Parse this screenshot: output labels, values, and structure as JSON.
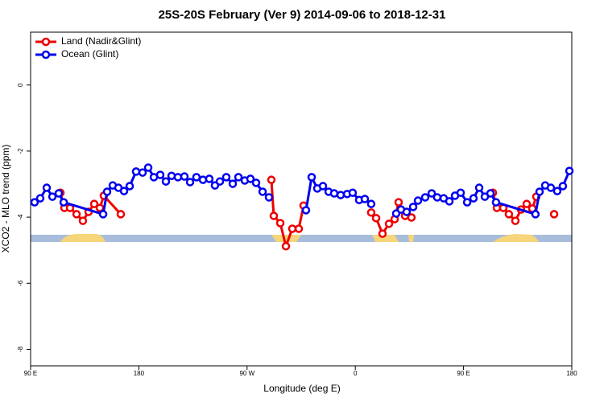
{
  "chart_data": {
    "type": "line",
    "title": "25S-20S February (Ver 9)   2014-09-06 to 2018-12-31",
    "x_label": "Longitude (deg E)",
    "y_label": "XCO2 - MLO trend (ppm)",
    "xlim": [
      90,
      540
    ],
    "ylim": [
      -8.5,
      1.6
    ],
    "xticks": [
      {
        "value": 90,
        "label": "90 E"
      },
      180,
      {
        "value": 270,
        "label": "90 W"
      },
      {
        "value": 360,
        "label": "0"
      },
      {
        "value": 450,
        "label": "90 E"
      },
      {
        "value": 540,
        "label": "180"
      }
    ],
    "yticks": [
      0,
      -2,
      -4,
      -6,
      -8
    ],
    "legend": "top-left",
    "series": [
      {
        "name": "Land (Nadir&Glint)",
        "color": "#ee0000",
        "x": [
          114.8,
          118.1,
          122.8,
          128.2,
          133.5,
          138.2,
          142.9,
          147.6,
          150.9,
          165,
          null,
          290.2,
          292.2,
          297.6,
          302.3,
          307.6,
          313,
          317,
          null,
          373.2,
          377.3,
          382.6,
          388,
          392.7,
          396,
          401.4,
          406.7,
          null,
          474.4,
          477.7,
          483.1,
          487.7,
          493.1,
          497.8,
          502.5,
          507.2,
          510.5,
          null,
          525.3
        ],
        "values": [
          -3.26,
          -3.72,
          -3.72,
          -3.91,
          -4.11,
          -3.84,
          -3.6,
          -3.72,
          -3.35,
          -3.91,
          null,
          -2.87,
          -3.96,
          -4.18,
          -4.88,
          -4.35,
          -4.35,
          -3.65,
          null,
          -3.86,
          -4.03,
          -4.5,
          -4.2,
          -4.06,
          -3.55,
          -3.96,
          -4.01,
          null,
          -3.26,
          -3.72,
          -3.72,
          -3.91,
          -4.11,
          -3.77,
          -3.6,
          -3.74,
          -3.38,
          null,
          -3.91
        ]
      },
      {
        "name": "Ocean (Glint)",
        "color": "#0000ee",
        "x": [
          93.3,
          98,
          103.4,
          108.1,
          113.4,
          117.5,
          150.3,
          153.6,
          158.3,
          163,
          167.7,
          172.4,
          177.7,
          183.1,
          187.8,
          192.5,
          197.8,
          202.5,
          207.2,
          212.5,
          217.9,
          222.6,
          227.9,
          233.3,
          238.6,
          243.3,
          247.4,
          252.7,
          258.1,
          262.8,
          268.1,
          272.8,
          277.5,
          282.9,
          288.2,
          null,
          319,
          323.7,
          328.4,
          333.1,
          337.8,
          342.4,
          347.8,
          353.2,
          357.8,
          363.2,
          367.9,
          373.2,
          null,
          394,
          398,
          402.7,
          408.1,
          412.1,
          418.1,
          423.5,
          428.1,
          433.5,
          438.2,
          442.9,
          447.6,
          453,
          458.3,
          463,
          467.7,
          472.4,
          477,
          509.8,
          513.2,
          517.9,
          522.6,
          527.9,
          532.6,
          538
        ],
        "values": [
          -3.55,
          -3.43,
          -3.11,
          -3.38,
          -3.28,
          -3.55,
          -3.91,
          -3.23,
          -3.04,
          -3.11,
          -3.21,
          -3.06,
          -2.62,
          -2.65,
          -2.5,
          -2.79,
          -2.72,
          -2.92,
          -2.75,
          -2.79,
          -2.77,
          -2.94,
          -2.79,
          -2.87,
          -2.84,
          -3.04,
          -2.92,
          -2.79,
          -2.99,
          -2.79,
          -2.89,
          -2.84,
          -2.96,
          -3.23,
          -3.4,
          null,
          -3.79,
          -2.79,
          -3.13,
          -3.06,
          -3.23,
          -3.28,
          -3.33,
          -3.3,
          -3.26,
          -3.48,
          -3.45,
          -3.6,
          null,
          -3.89,
          -3.77,
          -3.84,
          -3.69,
          -3.5,
          -3.4,
          -3.28,
          -3.4,
          -3.43,
          -3.52,
          -3.35,
          -3.26,
          -3.55,
          -3.43,
          -3.11,
          -3.38,
          -3.28,
          -3.55,
          -3.91,
          -3.23,
          -3.04,
          -3.11,
          -3.21,
          -3.06,
          -2.6
        ]
      }
    ]
  }
}
